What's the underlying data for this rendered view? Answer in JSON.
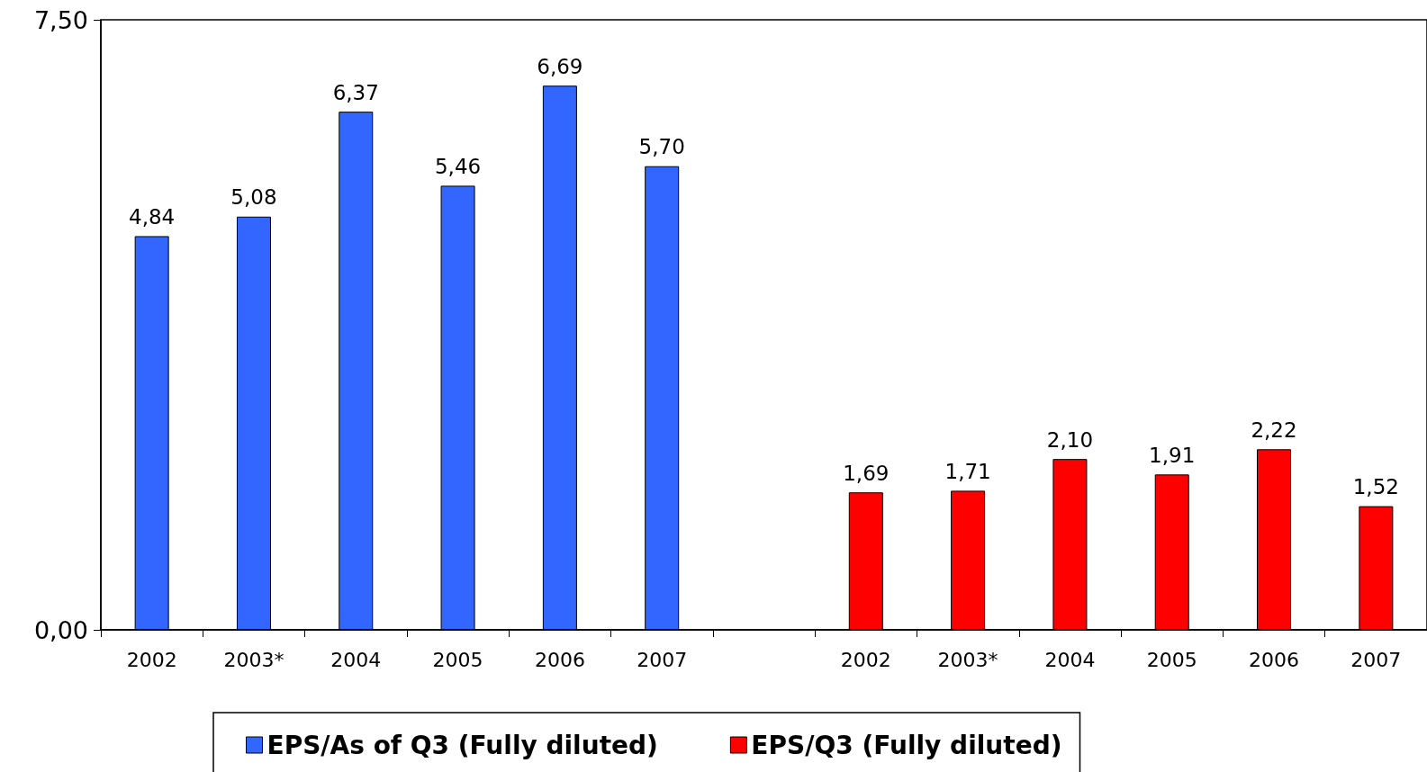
{
  "chart_data": {
    "type": "bar",
    "categories": [
      "2002",
      "2003*",
      "2004",
      "2005",
      "2006",
      "2007",
      null,
      "2002",
      "2003*",
      "2004",
      "2005",
      "2006",
      "2007"
    ],
    "series": [
      {
        "name": "EPS/As of Q3 (Fully diluted)",
        "color": "#3366ff",
        "values": [
          4.84,
          5.08,
          6.37,
          5.46,
          6.69,
          5.7,
          null,
          null,
          null,
          null,
          null,
          null,
          null
        ],
        "value_labels": [
          "4,84",
          "5,08",
          "6,37",
          "5,46",
          "6,69",
          "5,70",
          null,
          null,
          null,
          null,
          null,
          null,
          null
        ]
      },
      {
        "name": "EPS/Q3 (Fully diluted)",
        "color": "#ff0000",
        "values": [
          null,
          null,
          null,
          null,
          null,
          null,
          null,
          1.69,
          1.71,
          2.1,
          1.91,
          2.22,
          1.52
        ],
        "value_labels": [
          null,
          null,
          null,
          null,
          null,
          null,
          null,
          "1,69",
          "1,71",
          "2,10",
          "1,91",
          "2,22",
          "1,52"
        ]
      }
    ],
    "ylim": [
      0,
      7.5
    ],
    "yticks": [
      {
        "value": 0,
        "label": "0,00"
      },
      {
        "value": 7.5,
        "label": "7,50"
      }
    ],
    "grid": false,
    "legend": "bottom"
  }
}
